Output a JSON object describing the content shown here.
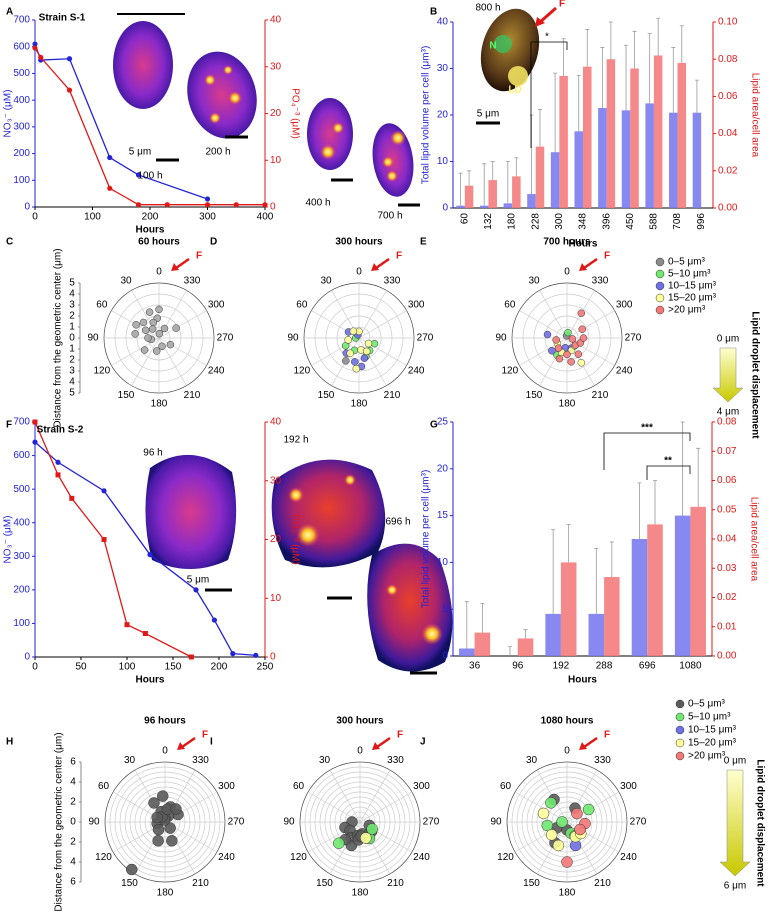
{
  "chart_data": [
    {
      "type": "line",
      "panel": "A",
      "label": "Strain S-1",
      "xlabel": "Hours",
      "ylabel": "NO₃⁻ (μM)",
      "y2label": "PO₄⁻³ (μM)",
      "xlim": [
        0,
        400
      ],
      "xticks": [
        0,
        100,
        200,
        300,
        400
      ],
      "ylim": [
        0,
        700
      ],
      "yticks": [
        0,
        100,
        200,
        300,
        400,
        500,
        600,
        700
      ],
      "y2lim": [
        0,
        40
      ],
      "y2ticks": [
        0,
        10,
        20,
        30,
        40
      ],
      "series": [
        {
          "color": "#2323d8",
          "marker": "circle",
          "x": [
            0,
            10,
            60,
            130,
            180,
            300
          ],
          "values": [
            610,
            550,
            555,
            185,
            120,
            30
          ]
        },
        {
          "color": "#e01818",
          "marker": "circle",
          "axis": "y2",
          "x": [
            0,
            10,
            60,
            130,
            180,
            230,
            300,
            350,
            400
          ],
          "values": [
            34,
            32,
            25,
            4,
            0.5,
            0.5,
            0.5,
            0.5,
            0.5
          ]
        }
      ],
      "annotations": [
        "100 h",
        "5 μm",
        "200 h",
        "400 h",
        "700 h"
      ]
    },
    {
      "type": "bar",
      "panel": "B",
      "xlabel": "Hours",
      "ylabel": "Total lipid volume per cell (μm³)",
      "y2label": "Lipid area/cell area",
      "categories": [
        "60",
        "132",
        "180",
        "228",
        "300",
        "348",
        "396",
        "450",
        "588",
        "708",
        "996"
      ],
      "ylim": [
        0,
        40
      ],
      "yticks": [
        0,
        10,
        20,
        30,
        40
      ],
      "y2lim": [
        0,
        0.1
      ],
      "y2ticks": [
        {
          "value": 0,
          "label": "0.00"
        },
        0.02,
        0.04,
        0.06,
        0.08,
        {
          "value": 0.1,
          "label": "0.10"
        }
      ],
      "series": [
        {
          "color": "#7b7bef",
          "values": [
            0.5,
            0.5,
            1,
            3,
            12,
            16.5,
            21.5,
            21,
            22.5,
            20.5,
            20.5
          ],
          "errors": [
            7,
            9,
            9,
            17,
            17,
            12,
            13,
            14,
            15,
            14,
            7
          ]
        },
        {
          "color": "#f47c7c",
          "axis": "y2",
          "values": [
            0.012,
            0.015,
            0.017,
            0.033,
            0.071,
            0.076,
            0.08,
            0.075,
            0.082,
            0.078,
            null
          ],
          "errors": [
            0.008,
            0.01,
            0.01,
            0.02,
            0.02,
            0.02,
            0.02,
            0.02,
            0.02,
            0.02,
            null
          ]
        }
      ],
      "annotations": [
        "800 h",
        "F",
        "N",
        "LD",
        "5 μm",
        "*"
      ]
    },
    {
      "type": "polar",
      "panel": "C",
      "title": "60 hours",
      "marker_label": "F",
      "rlabel": "Distance from the geometric center (μm)",
      "rlim": [
        0,
        5
      ],
      "rticks": [
        0,
        1,
        2,
        3,
        4,
        5
      ],
      "rgrid": [
        1,
        2,
        3,
        4,
        5
      ],
      "thetaticks": [
        0,
        30,
        60,
        90,
        120,
        150,
        180,
        210,
        240,
        270,
        300,
        330
      ],
      "series": [
        {
          "name": "0–5 μm³",
          "color": "#a6a6a6",
          "theta": [
            0,
            5,
            20,
            35,
            45,
            60,
            80,
            100,
            130,
            170,
            200,
            240,
            300,
            330,
            355,
            90,
            20,
            60
          ],
          "values": [
            2.6,
            1.8,
            1.5,
            1.0,
            2.0,
            1.4,
            2.2,
            0.7,
            1.7,
            1.2,
            0.8,
            1.2,
            1.8,
            1.0,
            0.4,
            1.0,
            2.5,
            2.4
          ]
        }
      ]
    },
    {
      "type": "polar",
      "panel": "D",
      "title": "300 hours",
      "marker_label": "F",
      "rlim": [
        0,
        5
      ],
      "rgrid": [
        1,
        2,
        3,
        4,
        5
      ],
      "thetaticks": [
        0,
        30,
        60,
        90,
        120,
        150,
        180,
        210,
        240,
        270,
        300,
        330
      ],
      "series": [
        {
          "name": "0–5 μm³",
          "color": "#8c8c8c",
          "theta": [
            30,
            150
          ],
          "values": [
            0.4,
            2.4
          ]
        },
        {
          "name": "5–10 μm³",
          "color": "#6ee86e",
          "theta": [
            90,
            120,
            160,
            200,
            220,
            250
          ],
          "values": [
            0.3,
            1.4,
            1.2,
            1.8,
            1.5,
            1.5
          ]
        },
        {
          "name": "10–15 μm³",
          "color": "#6f6fe8",
          "theta": [
            20,
            60,
            140,
            170,
            185,
            195
          ],
          "values": [
            0.3,
            1.1,
            1.8,
            2.2,
            2.6,
            1.9
          ]
        },
        {
          "name": "15–20 μm³",
          "color": "#ffff99",
          "theta": [
            0,
            40,
            100,
            150,
            175,
            190,
            210,
            240
          ],
          "values": [
            0.6,
            0.8,
            1.0,
            1.6,
            2.8,
            1.1,
            1.4,
            1.0
          ]
        }
      ]
    },
    {
      "type": "polar",
      "panel": "E",
      "title": "700 hours",
      "marker_label": "F",
      "rlim": [
        0,
        5
      ],
      "rgrid": [
        1,
        2,
        3,
        4,
        5
      ],
      "thetaticks": [
        0,
        30,
        60,
        90,
        120,
        150,
        180,
        210,
        240,
        270,
        300,
        330
      ],
      "legend": true,
      "displacement": {
        "label": "Lipid droplet displacement",
        "from": "0 μm",
        "to": "4 μm"
      },
      "series": [
        {
          "name": "0–5 μm³",
          "color": "#8c8c8c",
          "theta": [
            10
          ],
          "values": [
            0.2
          ]
        },
        {
          "name": "5–10 μm³",
          "color": "#6ee86e",
          "theta": [
            350,
            150
          ],
          "values": [
            0.5,
            1.8
          ]
        },
        {
          "name": "10–15 μm³",
          "color": "#6f6fe8",
          "theta": [
            80,
            200,
            130,
            170
          ],
          "values": [
            1.8,
            1.0,
            1.8,
            0.9
          ]
        },
        {
          "name": "15–20 μm³",
          "color": "#ffff99",
          "theta": [
            120,
            160,
            200,
            210,
            225
          ],
          "values": [
            1.0,
            1.4,
            1.2,
            2.6,
            1.0
          ]
        },
        {
          "name": ">20 μm³",
          "color": "#f27878",
          "theta": [
            330,
            300,
            100,
            140,
            160,
            180,
            190,
            215,
            230,
            250,
            270,
            260
          ],
          "values": [
            2.6,
            1.6,
            1.0,
            1.2,
            2.0,
            1.5,
            2.2,
            1.8,
            1.0,
            1.3,
            1.5,
            0.5
          ]
        }
      ]
    },
    {
      "type": "line",
      "panel": "F",
      "label": "Strain S-2",
      "xlabel": "Hours",
      "ylabel": "NO₃⁻ (μM)",
      "y2label": "PO₄⁻³ (μM)",
      "xlim": [
        0,
        250
      ],
      "xticks": [
        0,
        50,
        100,
        150,
        200,
        250
      ],
      "ylim": [
        0,
        700
      ],
      "yticks": [
        0,
        100,
        200,
        300,
        400,
        500,
        600,
        700
      ],
      "y2lim": [
        0,
        40
      ],
      "y2ticks": [
        0,
        10,
        20,
        30,
        40
      ],
      "series": [
        {
          "color": "#2323d8",
          "marker": "circle",
          "x": [
            0,
            25,
            75,
            125,
            175,
            195,
            215,
            240
          ],
          "values": [
            640,
            580,
            495,
            305,
            200,
            110,
            10,
            5
          ]
        },
        {
          "color": "#e01818",
          "marker": "square",
          "axis": "y2",
          "x": [
            0,
            25,
            40,
            75,
            100,
            120,
            170
          ],
          "values": [
            40,
            31,
            27,
            20,
            5.5,
            4,
            0
          ]
        }
      ],
      "annotations": [
        "96 h",
        "5 μm",
        "192 h",
        "696 h"
      ]
    },
    {
      "type": "bar",
      "panel": "G",
      "xlabel": "Hours",
      "ylabel": "Total lipid volume per cell (μm³)",
      "y2label": "Lipid area/cell area",
      "categories": [
        "36",
        "96",
        "192",
        "288",
        "696",
        "1080"
      ],
      "ylim": [
        0,
        25
      ],
      "yticks": [
        0,
        5,
        10,
        15,
        20,
        25
      ],
      "y2lim": [
        0,
        0.08
      ],
      "y2ticks": [
        {
          "value": 0,
          "label": "0.00"
        },
        0.01,
        0.02,
        0.03,
        0.04,
        0.05,
        0.06,
        0.07,
        0.08
      ],
      "series": [
        {
          "color": "#7b7bef",
          "values": [
            0.8,
            0,
            4.5,
            4.5,
            12.5,
            15
          ],
          "errors": [
            5,
            1,
            9,
            7,
            6,
            10
          ]
        },
        {
          "color": "#f47c7c",
          "axis": "y2",
          "values": [
            0.008,
            0.006,
            0.032,
            0.027,
            0.045,
            0.051
          ],
          "errors": [
            0.01,
            0.003,
            0.013,
            0.012,
            0.015,
            0.02
          ]
        }
      ],
      "annotations": [
        "***",
        "**"
      ]
    },
    {
      "type": "polar",
      "panel": "H",
      "title": "96 hours",
      "marker_label": "F",
      "rlabel": "Distance from the geometric center (μm)",
      "rlim": [
        0,
        6
      ],
      "rticks": [
        0,
        2,
        4,
        6
      ],
      "rgrid": [
        0.5,
        1,
        1.5,
        2,
        2.5,
        3,
        3.5,
        4,
        4.5,
        5,
        5.5,
        6
      ],
      "thetaticks": [
        0,
        30,
        60,
        90,
        120,
        150,
        180,
        210,
        240,
        270,
        300,
        330
      ],
      "series": [
        {
          "name": "0–5 μm³",
          "color": "#5a5a5a",
          "theta": [
            5,
            340,
            30,
            20,
            300,
            330,
            100,
            140,
            160,
            200,
            220,
            0,
            10,
            30,
            60,
            145,
            350,
            320
          ],
          "values": [
            2.6,
            1.6,
            2.2,
            1.1,
            1.5,
            0.7,
            0.8,
            1.0,
            2.0,
            2.0,
            0.8,
            0.4,
            0.2,
            0.6,
            0.9,
            5.8,
            1.3,
            1.7
          ]
        }
      ]
    },
    {
      "type": "polar",
      "panel": "I",
      "title": "300 hours",
      "marker_label": "F",
      "rlim": [
        0,
        6
      ],
      "rgrid": [
        0.5,
        1,
        1.5,
        2,
        2.5,
        3,
        3.5,
        4,
        4.5,
        5,
        5.5,
        6
      ],
      "thetaticks": [
        0,
        30,
        60,
        90,
        120,
        150,
        180,
        210,
        240,
        270,
        300,
        330
      ],
      "series": [
        {
          "name": "0–5 μm³",
          "color": "#5a5a5a",
          "theta": [
            90,
            110,
            130,
            150,
            170,
            180,
            190,
            200,
            210,
            230,
            250,
            160,
            140,
            175,
            185
          ],
          "values": [
            0.8,
            1.6,
            1.3,
            1.8,
            1.4,
            1.5,
            1.2,
            1.7,
            1.8,
            1.5,
            1.0,
            2.5,
            2.3,
            1.8,
            1.4
          ]
        },
        {
          "name": "5–10 μm³",
          "color": "#6ee86e",
          "theta": [
            135,
            210,
            240
          ],
          "values": [
            3.0,
            1.9,
            1.4
          ]
        },
        {
          "name": "15–20 μm³",
          "color": "#ffff99",
          "theta": [
            200
          ],
          "values": [
            1.7
          ]
        }
      ]
    },
    {
      "type": "polar",
      "panel": "J",
      "title": "1080 hours",
      "marker_label": "F",
      "rlim": [
        0,
        6
      ],
      "rgrid": [
        0.5,
        1,
        1.5,
        2,
        2.5,
        3,
        3.5,
        4,
        4.5,
        5,
        5.5,
        6
      ],
      "thetaticks": [
        0,
        30,
        60,
        90,
        120,
        150,
        180,
        210,
        240,
        270,
        300,
        330
      ],
      "legend": true,
      "displacement": {
        "label": "Lipid droplet displacement",
        "from": "0 μm",
        "to": "6 μm"
      },
      "series": [
        {
          "name": "0–5 μm³",
          "color": "#5a5a5a",
          "theta": [
            30,
            330,
            120,
            150,
            180
          ],
          "values": [
            2.6,
            1.6,
            1.2,
            2.4,
            0.8
          ]
        },
        {
          "name": "5–10 μm³",
          "color": "#6ee86e",
          "theta": [
            40,
            300,
            90,
            100,
            200,
            210
          ],
          "values": [
            2.5,
            2.5,
            0.5,
            2.0,
            1.2,
            1.6
          ]
        },
        {
          "name": "10–15 μm³",
          "color": "#6f6fe8",
          "theta": [
            200
          ],
          "values": [
            2.5
          ]
        },
        {
          "name": "15–20 μm³",
          "color": "#ffff99",
          "theta": [
            70,
            130,
            160,
            210,
            230
          ],
          "values": [
            2.5,
            2.0,
            2.5,
            1.7,
            1.8
          ]
        },
        {
          "name": ">20 μm³",
          "color": "#f27878",
          "theta": [
            310,
            265,
            240,
            180
          ],
          "values": [
            1.3,
            1.8,
            1.5,
            4.0
          ]
        }
      ]
    }
  ]
}
